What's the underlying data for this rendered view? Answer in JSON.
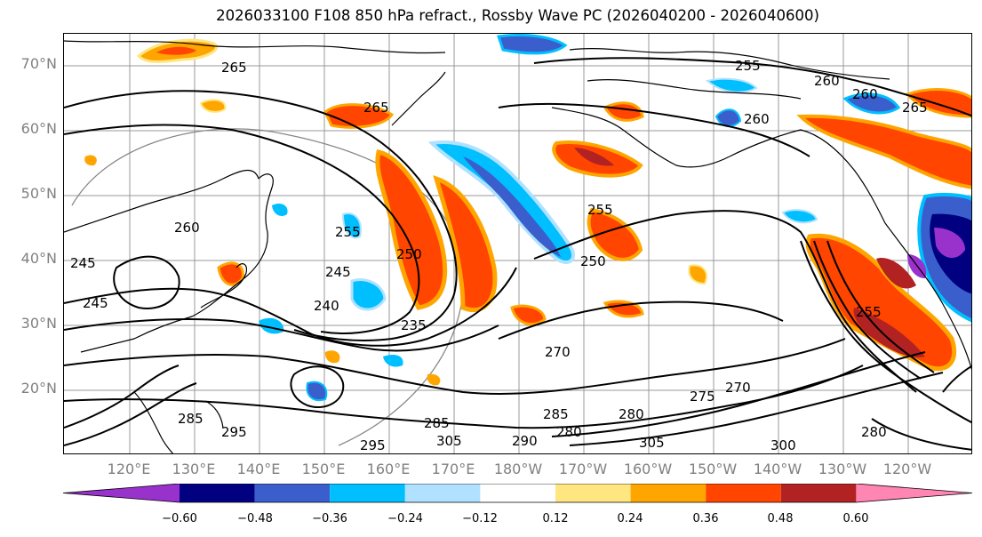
{
  "title": "2026033100 F108 850 hPa refract., Rossby Wave PC (2026040200 - 2026040600)",
  "lat_labels": [
    "70°N",
    "60°N",
    "50°N",
    "40°N",
    "30°N",
    "20°N"
  ],
  "lon_labels": [
    "120°E",
    "130°E",
    "140°E",
    "150°E",
    "160°E",
    "170°E",
    "180°W",
    "170°W",
    "160°W",
    "150°W",
    "140°W",
    "130°W",
    "120°W"
  ],
  "contour_labels": [
    "265",
    "265",
    "255",
    "260",
    "260",
    "260",
    "260",
    "255",
    "250",
    "245",
    "240",
    "235",
    "250",
    "255",
    "270",
    "275",
    "270",
    "280",
    "285",
    "285",
    "280",
    "290",
    "295",
    "305",
    "305",
    "300",
    "280",
    "245",
    "245",
    "295",
    "255",
    "285",
    "265"
  ],
  "colorbar": {
    "ticks": [
      "−0.60",
      "−0.48",
      "−0.36",
      "−0.24",
      "−0.12",
      "0.12",
      "0.24",
      "0.36",
      "0.48",
      "0.60"
    ],
    "colors": [
      "#9932cc",
      "#000080",
      "#3a5fcd",
      "#00bfff",
      "#b0e2ff",
      "#ffffff",
      "#ffe680",
      "#ffa500",
      "#ff4500",
      "#b22222",
      "#ff85b3"
    ]
  }
}
